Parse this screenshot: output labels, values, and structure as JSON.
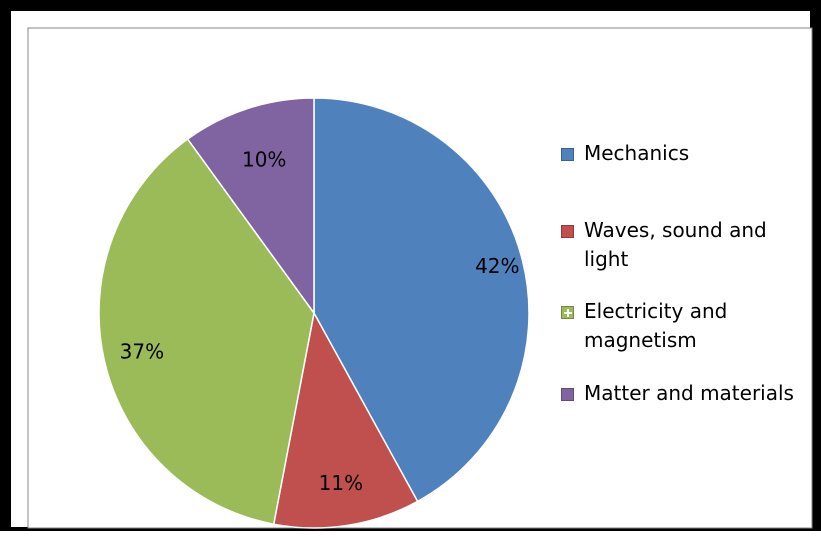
{
  "chart_data": {
    "type": "pie",
    "title": "",
    "slices": [
      {
        "label": "Mechanics",
        "value": 42,
        "display": "42%",
        "color": "#4f81bd"
      },
      {
        "label": "Waves, sound and light",
        "value": 11,
        "display": "11%",
        "color": "#c0504d"
      },
      {
        "label": "Electricity and magnetism",
        "value": 37,
        "display": "37%",
        "color": "#9bbb59"
      },
      {
        "label": "Matter and materials",
        "value": 10,
        "display": "10%",
        "color": "#8064a2"
      }
    ],
    "start_angle_deg": 0,
    "direction": "clockwise",
    "legend_position": "right"
  },
  "legend": {
    "items": [
      {
        "label_line1": "Mechanics",
        "label_line2": "",
        "icon": "square-icon"
      },
      {
        "label_line1": "Waves, sound and",
        "label_line2": "light",
        "icon": "square-icon"
      },
      {
        "label_line1": "Electricity and",
        "label_line2": "magnetism",
        "icon": "plus-square-icon"
      },
      {
        "label_line1": "Matter and materials",
        "label_line2": "",
        "icon": "square-icon"
      }
    ]
  }
}
